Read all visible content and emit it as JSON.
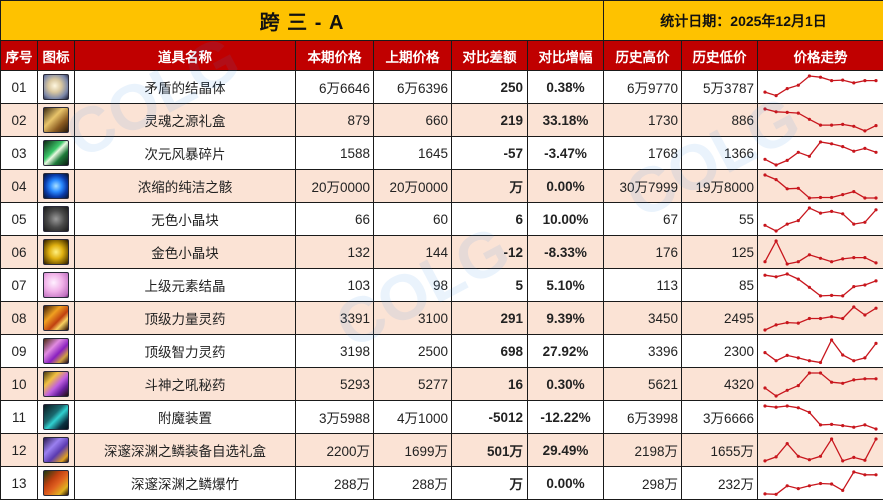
{
  "header": {
    "title": "跨 三 - A",
    "date_label": "统计日期：2025年12月1日"
  },
  "columns": [
    "序号",
    "图标",
    "道具名称",
    "本期价格",
    "上期价格",
    "对比差额",
    "对比增幅",
    "历史高价",
    "历史低价",
    "价格走势"
  ],
  "colors": {
    "title_bg": "#fec200",
    "header_bg": "#c00000",
    "row_alt_bg": "#fbe3d5",
    "up": "#e31414",
    "down": "#1fa24a",
    "spark": "#c8161d"
  },
  "rows": [
    {
      "idx": "01",
      "icon": "crystal-icon",
      "name": "矛盾的结晶体",
      "cur": "6万6646",
      "prev": "6万6396",
      "diff": "250",
      "pct": "0.38%",
      "trend": "up",
      "high": "6万9770",
      "low": "5万3787",
      "spark": [
        0.3,
        0.15,
        0.45,
        0.6,
        1.0,
        0.95,
        0.8,
        0.82,
        0.7,
        0.8,
        0.8
      ]
    },
    {
      "idx": "02",
      "icon": "gift-box-icon",
      "name": "灵魂之源礼盒",
      "cur": "879",
      "prev": "660",
      "diff": "219",
      "pct": "33.18%",
      "trend": "up",
      "high": "1730",
      "low": "886",
      "spark": [
        1.0,
        0.88,
        0.85,
        0.82,
        0.55,
        0.3,
        0.3,
        0.33,
        0.25,
        0.05,
        0.28
      ]
    },
    {
      "idx": "03",
      "icon": "storm-shard-icon",
      "name": "次元风暴碎片",
      "cur": "1588",
      "prev": "1645",
      "diff": "-57",
      "pct": "-3.47%",
      "trend": "down",
      "high": "1768",
      "low": "1366",
      "spark": [
        0.25,
        0.0,
        0.2,
        0.55,
        0.38,
        1.0,
        0.92,
        0.8,
        0.6,
        0.72,
        0.55
      ]
    },
    {
      "idx": "04",
      "icon": "pure-essence-icon",
      "name": "浓缩的纯洁之骸",
      "cur": "20万0000",
      "prev": "20万0000",
      "diff": "万",
      "pct": "0.00%",
      "trend": "up",
      "high": "30万7999",
      "low": "19万8000",
      "spark": [
        1.0,
        0.8,
        0.4,
        0.42,
        0.0,
        0.02,
        0.02,
        0.15,
        0.28,
        0.0,
        0.0
      ]
    },
    {
      "idx": "05",
      "icon": "colorless-cube-icon",
      "name": "无色小晶块",
      "cur": "66",
      "prev": "60",
      "diff": "6",
      "pct": "10.00%",
      "trend": "up",
      "high": "67",
      "low": "55",
      "spark": [
        0.25,
        0.0,
        0.3,
        0.45,
        1.0,
        0.78,
        0.85,
        0.75,
        0.3,
        0.38,
        0.92
      ]
    },
    {
      "idx": "06",
      "icon": "gold-cube-icon",
      "name": "金色小晶块",
      "cur": "132",
      "prev": "144",
      "diff": "-12",
      "pct": "-8.33%",
      "trend": "down",
      "high": "176",
      "low": "125",
      "spark": [
        0.1,
        1.0,
        0.0,
        0.1,
        0.4,
        0.25,
        0.1,
        0.22,
        0.28,
        0.28,
        0.05
      ]
    },
    {
      "idx": "07",
      "icon": "element-crystal-icon",
      "name": "上级元素结晶",
      "cur": "103",
      "prev": "98",
      "diff": "5",
      "pct": "5.10%",
      "trend": "up",
      "high": "113",
      "low": "85",
      "spark": [
        0.95,
        0.88,
        1.0,
        0.78,
        0.42,
        0.05,
        0.07,
        0.05,
        0.45,
        0.52,
        0.7
      ]
    },
    {
      "idx": "08",
      "icon": "strength-elixir-icon",
      "name": "顶级力量灵药",
      "cur": "3391",
      "prev": "3100",
      "diff": "291",
      "pct": "9.39%",
      "trend": "up",
      "high": "3450",
      "low": "2495",
      "spark": [
        0.0,
        0.22,
        0.32,
        0.3,
        0.5,
        0.5,
        0.58,
        0.5,
        1.0,
        0.65,
        0.95
      ]
    },
    {
      "idx": "09",
      "icon": "intelligence-elixir-icon",
      "name": "顶级智力灵药",
      "cur": "3198",
      "prev": "2500",
      "diff": "698",
      "pct": "27.92%",
      "trend": "up",
      "high": "3396",
      "low": "2300",
      "spark": [
        0.45,
        0.1,
        0.33,
        0.22,
        0.1,
        0.02,
        1.0,
        0.35,
        0.1,
        0.22,
        0.85
      ]
    },
    {
      "idx": "10",
      "icon": "war-god-potion-icon",
      "name": "斗神之吼秘药",
      "cur": "5293",
      "prev": "5277",
      "diff": "16",
      "pct": "0.30%",
      "trend": "up",
      "high": "5621",
      "low": "4320",
      "spark": [
        0.35,
        0.0,
        0.25,
        0.45,
        1.0,
        1.0,
        0.6,
        0.55,
        0.7,
        0.75,
        0.75
      ]
    },
    {
      "idx": "11",
      "icon": "enchant-device-icon",
      "name": "附魔装置",
      "cur": "3万5988",
      "prev": "4万1000",
      "diff": "-5012",
      "pct": "-12.22%",
      "trend": "down",
      "high": "6万3998",
      "low": "3万6666",
      "spark": [
        1.0,
        0.95,
        1.0,
        0.92,
        0.72,
        0.18,
        0.2,
        0.15,
        0.08,
        0.18,
        0.0
      ]
    },
    {
      "idx": "12",
      "icon": "abyss-gift-box-icon",
      "name": "深邃深渊之鳞装备自选礼盒",
      "cur": "2200万",
      "prev": "1699万",
      "diff": "501万",
      "pct": "29.49%",
      "trend": "up",
      "high": "2198万",
      "low": "1655万",
      "spark": [
        0.05,
        0.22,
        0.8,
        0.25,
        0.1,
        0.25,
        1.0,
        0.05,
        0.2,
        0.08,
        1.0
      ]
    },
    {
      "idx": "13",
      "icon": "abyss-firecracker-icon",
      "name": "深邃深渊之鳞爆竹",
      "cur": "288万",
      "prev": "288万",
      "diff": "万",
      "pct": "0.00%",
      "trend": "up",
      "high": "298万",
      "low": "232万",
      "spark": [
        0.05,
        0.03,
        0.4,
        0.28,
        0.4,
        0.5,
        0.48,
        0.2,
        1.0,
        0.88,
        0.88
      ]
    }
  ]
}
